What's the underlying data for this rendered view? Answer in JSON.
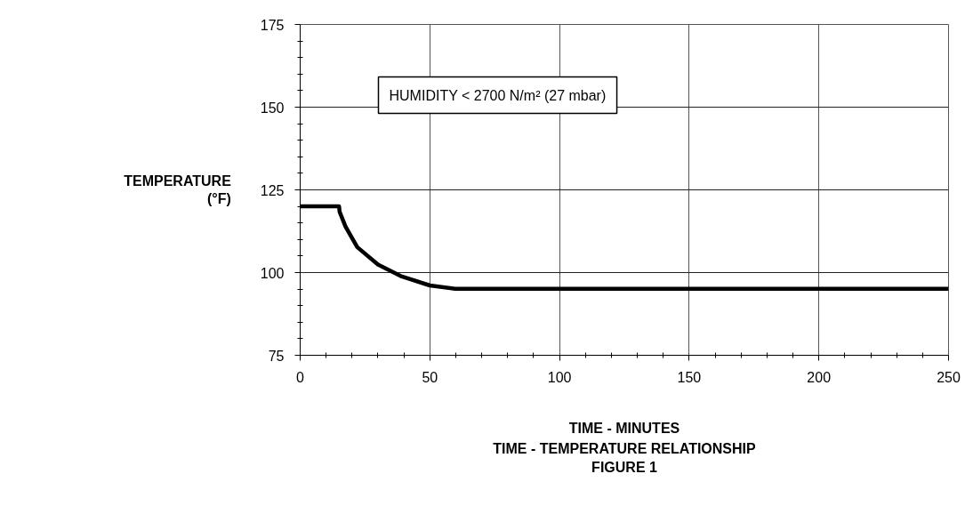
{
  "chart_data": {
    "type": "line",
    "title": "TIME - TEMPERATURE RELATIONSHIP",
    "subtitle": "FIGURE 1",
    "xlabel": "TIME - MINUTES",
    "ylabel": "TEMPERATURE\n(°F)",
    "annotations": [
      "HUMIDITY < 2700 N/m² (27 mbar)"
    ],
    "series": [
      {
        "color": "#000000",
        "x": [
          0,
          15,
          15.2,
          17.5,
          22,
          30,
          39.2,
          50,
          59.7,
          250
        ],
        "values": [
          120,
          120,
          118.4,
          113.9,
          107.7,
          102.4,
          98.8,
          96.1,
          95.1,
          95.1
        ]
      }
    ],
    "xlim": [
      0,
      250
    ],
    "xticks": [
      0,
      50,
      100,
      150,
      200,
      250
    ],
    "ylim": [
      75,
      175
    ],
    "yticks": [
      75,
      100,
      125,
      150,
      175
    ],
    "grid": true,
    "line_style": "solid"
  }
}
